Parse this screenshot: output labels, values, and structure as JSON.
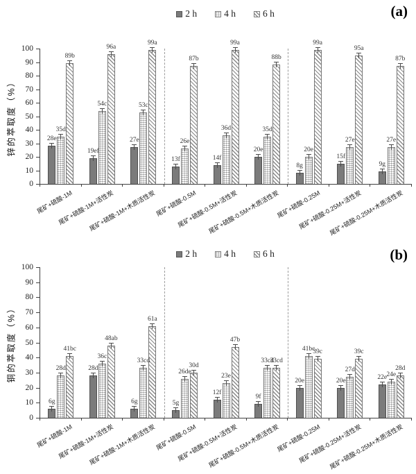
{
  "chart_data": [
    {
      "type": "bar",
      "panel_label": "(a)",
      "ylabel": "锌的萃取度（%）",
      "xlabel": "",
      "ylim": [
        0,
        100
      ],
      "yticks": [
        0,
        10,
        20,
        30,
        40,
        50,
        60,
        70,
        80,
        90,
        100
      ],
      "grid": false,
      "legend_position": "top-center",
      "error_bars": true,
      "group_dividers_after": [
        3,
        6
      ],
      "categories": [
        "尾矿+硫酸-1M",
        "尾矿+硫酸-1M+活性炭",
        "尾矿+硫酸-1M+木质活性炭",
        "尾矿+硫酸-0.5M",
        "尾矿+硫酸-0.5M+活性炭",
        "尾矿+硫酸-0.5M+木质活性炭",
        "尾矿+硫酸-0.25M",
        "尾矿+硫酸-0.25M+活性炭",
        "尾矿+硫酸-0.25M+木质活性炭"
      ],
      "series": [
        {
          "name": "2 h",
          "values": [
            28,
            19,
            27,
            13,
            14,
            20,
            8,
            15,
            9
          ],
          "labels": [
            "28e",
            "19ef",
            "27e",
            "13f",
            "14f",
            "20e",
            "8g",
            "15f",
            "9g"
          ]
        },
        {
          "name": "4 h",
          "values": [
            35,
            54,
            53,
            26,
            36,
            35,
            20,
            27,
            27
          ],
          "labels": [
            "35d",
            "54c",
            "53c",
            "26e",
            "36d",
            "35d",
            "20e",
            "27e",
            "27e"
          ]
        },
        {
          "name": "6 h",
          "values": [
            89,
            96,
            99,
            87,
            99,
            88,
            99,
            95,
            87
          ],
          "labels": [
            "89b",
            "96a",
            "99a",
            "87b",
            "99a",
            "88b",
            "99a",
            "95a",
            "87b"
          ]
        }
      ]
    },
    {
      "type": "bar",
      "panel_label": "(b)",
      "ylabel": "铜的萃取度（%）",
      "xlabel": "",
      "ylim": [
        0,
        100
      ],
      "yticks": [
        0,
        10,
        20,
        30,
        40,
        50,
        60,
        70,
        80,
        90,
        100
      ],
      "grid": false,
      "legend_position": "top-center",
      "error_bars": true,
      "group_dividers_after": [
        3,
        6
      ],
      "categories": [
        "尾矿+硫酸-1M",
        "尾矿+硫酸-1M+活性炭",
        "尾矿+硫酸-1M+木质活性炭",
        "尾矿+硫酸-0.5M",
        "尾矿+硫酸-0.5M+活性炭",
        "尾矿+硫酸-0.5M+木质活性炭",
        "尾矿+硫酸-0.25M",
        "尾矿+硫酸-0.25M+活性炭",
        "尾矿+硫酸-0.25M+木质活性炭"
      ],
      "series": [
        {
          "name": "2 h",
          "values": [
            6,
            28,
            6,
            5,
            12,
            9,
            20,
            20,
            22
          ],
          "labels": [
            "6g",
            "28d",
            "6g",
            "5g",
            "12f",
            "9f",
            "20e",
            "20e",
            "22e"
          ]
        },
        {
          "name": "4 h",
          "values": [
            28,
            36,
            33,
            26,
            23,
            33,
            41,
            27,
            24
          ],
          "labels": [
            "28d",
            "36c",
            "33cd",
            "26de",
            "23e",
            "33cd",
            "41bc",
            "27d",
            "24e"
          ]
        },
        {
          "name": "6 h",
          "values": [
            41,
            48,
            61,
            30,
            47,
            33,
            39,
            39,
            28
          ],
          "labels": [
            "41bc",
            "48ab",
            "61a",
            "30d",
            "47b",
            "33cd",
            "39c",
            "39c",
            "28d"
          ]
        }
      ]
    }
  ],
  "colors": {
    "bar_2h_fill": "#7b7b7b",
    "bar_pattern_ink": "#8a8a8a",
    "bar_background": "#fdfdfd",
    "axis": "#3f3f3f",
    "divider": "#9c9c9c",
    "text": "#222222"
  }
}
